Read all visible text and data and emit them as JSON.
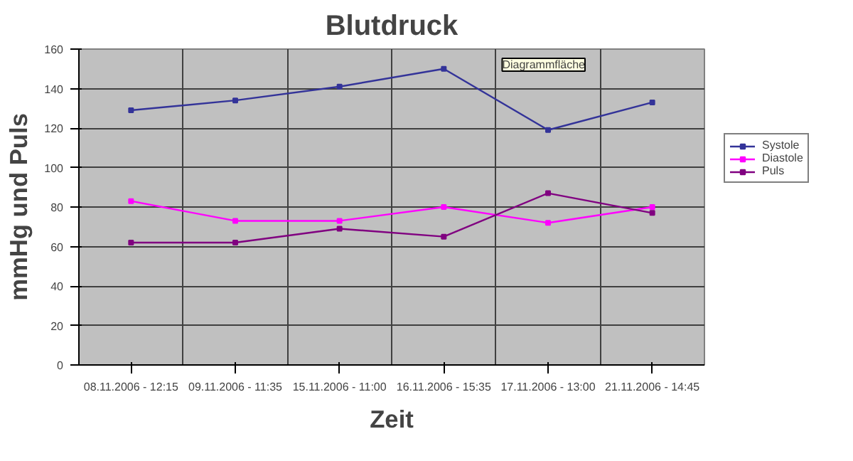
{
  "chart_data": {
    "type": "line",
    "title": "Blutdruck",
    "xlabel": "Zeit",
    "ylabel": "mmHg und Puls",
    "categories": [
      "08.11.2006 - 12:15",
      "09.11.2006 - 11:35",
      "15.11.2006 - 11:00",
      "16.11.2006 - 15:35",
      "17.11.2006 - 13:00",
      "21.11.2006 - 14:45"
    ],
    "series": [
      {
        "name": "Systole",
        "color": "#333399",
        "values": [
          129,
          134,
          141,
          150,
          119,
          133
        ]
      },
      {
        "name": "Diastole",
        "color": "#ff00ff",
        "values": [
          83,
          73,
          73,
          80,
          72,
          80
        ]
      },
      {
        "name": "Puls",
        "color": "#800080",
        "values": [
          62,
          62,
          69,
          65,
          87,
          77
        ]
      }
    ],
    "ylim": [
      0,
      160
    ],
    "yticks": [
      0,
      20,
      40,
      60,
      80,
      100,
      120,
      140,
      160
    ],
    "grid": true,
    "legend": "right",
    "marker": "square",
    "line_style": "solid",
    "annotations": [
      "Diagrammfläche"
    ]
  }
}
